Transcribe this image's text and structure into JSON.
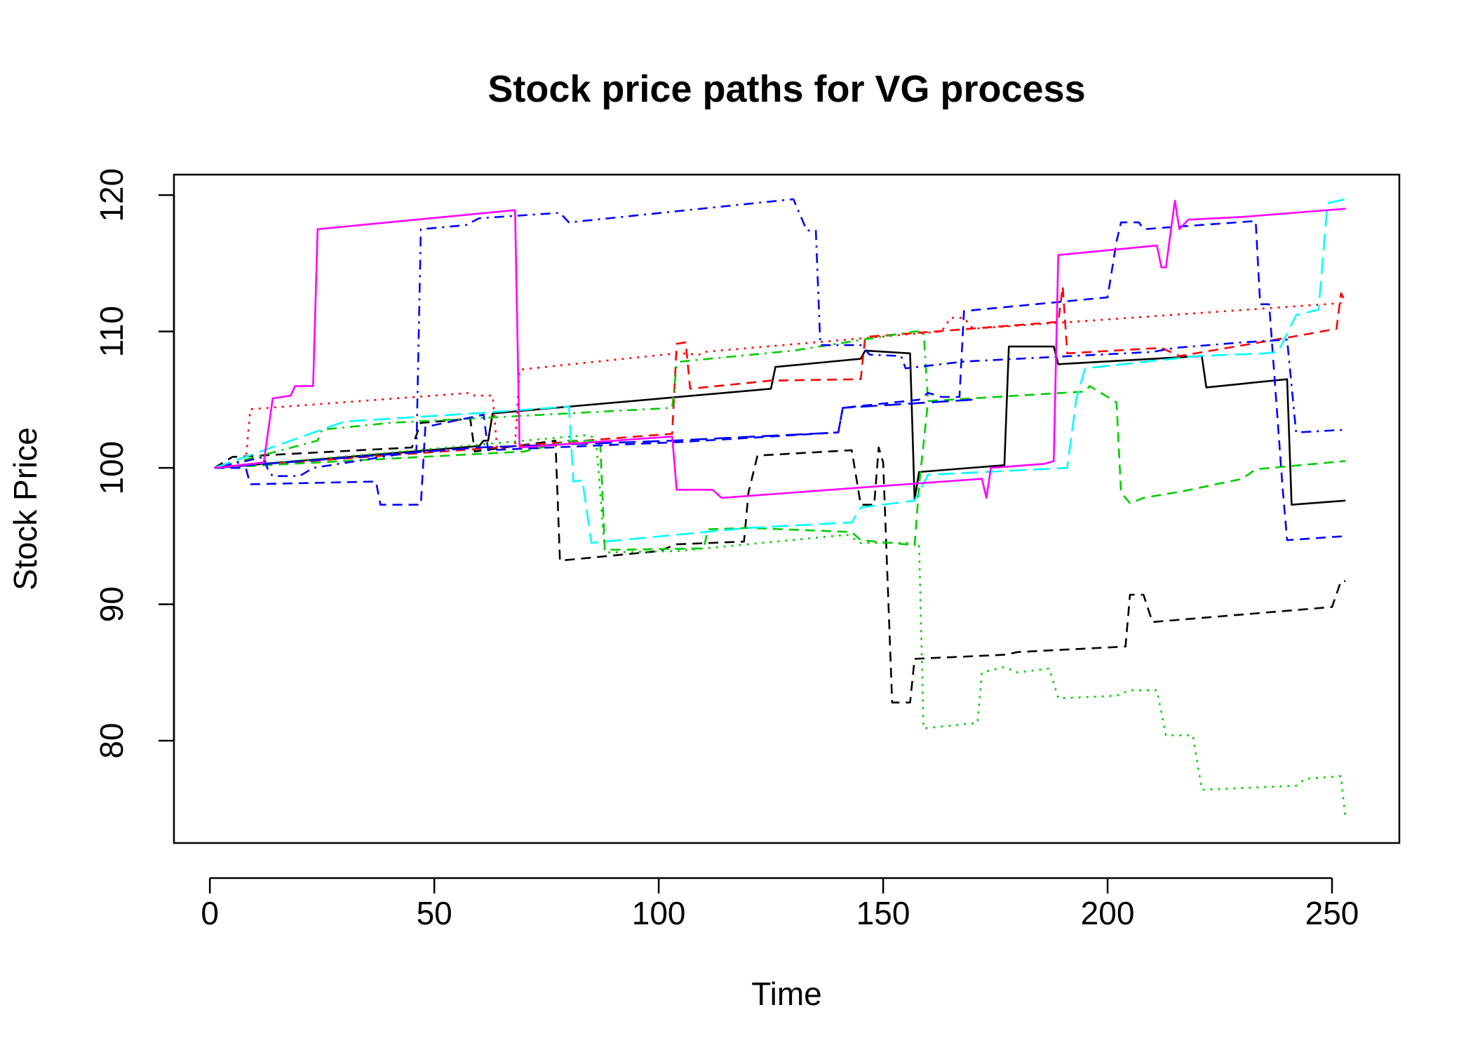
{
  "chart_data": {
    "type": "line",
    "title": "Stock price paths for VG process",
    "xlabel": "Time",
    "ylabel": "Stock Price",
    "xlim": [
      -8,
      265
    ],
    "ylim": [
      72.5,
      121.5
    ],
    "x_ticks": [
      0,
      50,
      100,
      150,
      200,
      250
    ],
    "x_tick_labels": [
      "0",
      "50",
      "100",
      "150",
      "200",
      "250"
    ],
    "y_ticks": [
      80,
      90,
      100,
      110,
      120
    ],
    "y_tick_labels": [
      "80",
      "90",
      "100",
      "110",
      "120"
    ],
    "grid": false,
    "legend": "none",
    "series": [
      {
        "color": "#000000",
        "dash": "solid",
        "points": [
          [
            1,
            100
          ],
          [
            60,
            101.6
          ],
          [
            61,
            102
          ],
          [
            62,
            102
          ],
          [
            63,
            104
          ],
          [
            125,
            105.8
          ],
          [
            126,
            107.4
          ],
          [
            145,
            108
          ],
          [
            146,
            108.6
          ],
          [
            156,
            108.4
          ],
          [
            157,
            97.7
          ],
          [
            158,
            99.7
          ],
          [
            177,
            100.2
          ],
          [
            178,
            108.9
          ],
          [
            188,
            108.9
          ],
          [
            189,
            107.6
          ],
          [
            221,
            108.2
          ],
          [
            222,
            105.9
          ],
          [
            240,
            106.5
          ],
          [
            241,
            97.3
          ],
          [
            253,
            97.6
          ]
        ]
      },
      {
        "color": "#000000",
        "dash": "dashed",
        "points": [
          [
            1,
            100
          ],
          [
            5,
            100.8
          ],
          [
            45,
            101.5
          ],
          [
            47,
            103.3
          ],
          [
            58,
            103.6
          ],
          [
            59,
            101.2
          ],
          [
            77,
            102
          ],
          [
            78,
            93.2
          ],
          [
            100,
            93.9
          ],
          [
            104,
            94.4
          ],
          [
            119,
            94.6
          ],
          [
            120,
            98.2
          ],
          [
            122,
            100.9
          ],
          [
            143,
            101.3
          ],
          [
            145,
            97.3
          ],
          [
            148,
            97.3
          ],
          [
            149,
            101.5
          ],
          [
            150,
            100.4
          ],
          [
            152,
            82.8
          ],
          [
            156,
            82.8
          ],
          [
            157,
            86
          ],
          [
            177,
            86.3
          ],
          [
            180,
            86.5
          ],
          [
            204,
            86.9
          ],
          [
            205,
            90.7
          ],
          [
            208,
            90.7
          ],
          [
            210,
            88.7
          ],
          [
            250,
            89.8
          ],
          [
            252,
            91.7
          ],
          [
            253,
            91.7
          ]
        ]
      },
      {
        "color": "#FF0000",
        "dash": "dotted",
        "points": [
          [
            1,
            100
          ],
          [
            8,
            100.5
          ],
          [
            9,
            104.3
          ],
          [
            58,
            105.5
          ],
          [
            59,
            105.3
          ],
          [
            63,
            105.3
          ],
          [
            64,
            101.4
          ],
          [
            68,
            101.6
          ],
          [
            69,
            107.2
          ],
          [
            104,
            108.4
          ],
          [
            105,
            108.4
          ],
          [
            109,
            108.3
          ],
          [
            110,
            108.5
          ],
          [
            163,
            110
          ],
          [
            165,
            111
          ],
          [
            168,
            111
          ],
          [
            170,
            110.2
          ],
          [
            253,
            112.1
          ]
        ]
      },
      {
        "color": "#FF0000",
        "dash": "dashed",
        "points": [
          [
            1,
            100
          ],
          [
            60,
            101.4
          ],
          [
            103,
            102.5
          ],
          [
            104,
            109.1
          ],
          [
            106,
            109.2
          ],
          [
            107,
            105.8
          ],
          [
            125,
            106.4
          ],
          [
            145,
            106.5
          ],
          [
            146,
            109.6
          ],
          [
            189,
            110.7
          ],
          [
            190,
            113.3
          ],
          [
            191,
            108.4
          ],
          [
            212,
            108.8
          ],
          [
            216,
            108.2
          ],
          [
            241,
            109.6
          ],
          [
            251,
            110.2
          ],
          [
            252,
            112.8
          ],
          [
            253,
            112.2
          ]
        ]
      },
      {
        "color": "#00CC00",
        "dash": "dashed",
        "points": [
          [
            1,
            100
          ],
          [
            70,
            101.2
          ],
          [
            78,
            101.8
          ],
          [
            79,
            102
          ],
          [
            86,
            102
          ],
          [
            87,
            101.6
          ],
          [
            88,
            94
          ],
          [
            92,
            94
          ],
          [
            110,
            94.1
          ],
          [
            111,
            95.5
          ],
          [
            120,
            95.6
          ],
          [
            143,
            95.3
          ],
          [
            145,
            94.7
          ],
          [
            155,
            94.4
          ],
          [
            157,
            94.3
          ],
          [
            158,
            98.7
          ],
          [
            160,
            104.9
          ],
          [
            195,
            105.6
          ],
          [
            196,
            106
          ],
          [
            202,
            104.8
          ],
          [
            203,
            98.2
          ],
          [
            205,
            97.4
          ],
          [
            208,
            97.8
          ],
          [
            217,
            98.3
          ],
          [
            230,
            99.2
          ],
          [
            233,
            99.9
          ],
          [
            253,
            100.5
          ]
        ]
      },
      {
        "color": "#00CC00",
        "dash": "dotted",
        "points": [
          [
            1,
            100
          ],
          [
            84,
            102.4
          ],
          [
            86,
            102.2
          ],
          [
            88,
            93.8
          ],
          [
            104,
            93.9
          ],
          [
            142,
            95.1
          ],
          [
            145,
            94.5
          ],
          [
            158,
            94.5
          ],
          [
            159,
            80.9
          ],
          [
            171,
            81.3
          ],
          [
            172,
            85
          ],
          [
            177,
            85.4
          ],
          [
            180,
            85
          ],
          [
            187,
            85.3
          ],
          [
            189,
            83.1
          ],
          [
            202,
            83.3
          ],
          [
            205,
            83.7
          ],
          [
            211,
            83.7
          ],
          [
            213,
            80.4
          ],
          [
            219,
            80.4
          ],
          [
            221,
            76.4
          ],
          [
            242,
            76.7
          ],
          [
            244,
            77.2
          ],
          [
            252,
            77.4
          ],
          [
            253,
            74.3
          ]
        ]
      },
      {
        "color": "#00CC00",
        "dash": "dotdash",
        "points": [
          [
            1,
            100
          ],
          [
            24,
            102
          ],
          [
            25,
            102.8
          ],
          [
            40,
            103.3
          ],
          [
            103,
            104.4
          ],
          [
            104,
            107.5
          ],
          [
            105,
            107.8
          ],
          [
            130,
            108.6
          ],
          [
            157,
            110
          ],
          [
            159,
            110
          ],
          [
            160,
            104.9
          ]
        ]
      },
      {
        "color": "#0000FF",
        "dash": "dashed",
        "points": [
          [
            1,
            100
          ],
          [
            8,
            100
          ],
          [
            9,
            98.8
          ],
          [
            37,
            99
          ],
          [
            38,
            97.3
          ],
          [
            47,
            97.3
          ],
          [
            48,
            103
          ],
          [
            61,
            103.9
          ],
          [
            62,
            101.3
          ],
          [
            105,
            101.9
          ],
          [
            140,
            102.6
          ],
          [
            141,
            104.4
          ],
          [
            158,
            105
          ],
          [
            160,
            105.5
          ],
          [
            163,
            105.2
          ],
          [
            167,
            105.2
          ],
          [
            168,
            111.5
          ],
          [
            200,
            112.5
          ],
          [
            202,
            116.6
          ],
          [
            203,
            118
          ],
          [
            207,
            118
          ],
          [
            208,
            117.5
          ],
          [
            233,
            118.1
          ],
          [
            234,
            112
          ],
          [
            236,
            112
          ],
          [
            239,
            98.5
          ],
          [
            240,
            94.7
          ],
          [
            253,
            95
          ]
        ]
      },
      {
        "color": "#0000FF",
        "dash": "dotdash",
        "points": [
          [
            1,
            100
          ],
          [
            12,
            100.8
          ],
          [
            13,
            99.8
          ],
          [
            14,
            99.4
          ],
          [
            20,
            99.4
          ],
          [
            23,
            100
          ],
          [
            46,
            101.2
          ],
          [
            47,
            117.5
          ],
          [
            57,
            117.8
          ],
          [
            60,
            118.3
          ],
          [
            78,
            118.7
          ],
          [
            80,
            118
          ],
          [
            130,
            119.7
          ],
          [
            133,
            117.4
          ],
          [
            135,
            117.4
          ],
          [
            136,
            109
          ],
          [
            145,
            109
          ],
          [
            147,
            108.3
          ],
          [
            154,
            108.2
          ],
          [
            155,
            107.3
          ],
          [
            168,
            107.8
          ],
          [
            210,
            108.5
          ],
          [
            215,
            108.8
          ],
          [
            230,
            109.2
          ],
          [
            240,
            109.4
          ],
          [
            242,
            102.6
          ],
          [
            253,
            102.8
          ]
        ]
      },
      {
        "color": "#0000FF",
        "dash": "longdash",
        "points": [
          [
            1,
            100
          ],
          [
            60,
            101.5
          ],
          [
            103,
            102
          ],
          [
            140,
            102.6
          ],
          [
            141,
            104.4
          ],
          [
            170,
            105
          ]
        ]
      },
      {
        "color": "#00FFFF",
        "dash": "longdash",
        "points": [
          [
            1,
            100
          ],
          [
            30,
            103.4
          ],
          [
            59,
            104
          ],
          [
            80,
            104.5
          ],
          [
            81,
            99
          ],
          [
            83,
            99.1
          ],
          [
            85,
            94.5
          ],
          [
            120,
            95.6
          ],
          [
            143,
            96
          ],
          [
            145,
            97.1
          ],
          [
            157,
            97.6
          ],
          [
            160,
            99.5
          ],
          [
            191,
            100
          ],
          [
            193,
            105
          ],
          [
            195,
            107.3
          ],
          [
            220,
            108.2
          ],
          [
            235,
            108.4
          ],
          [
            238,
            108.5
          ],
          [
            242,
            111.2
          ],
          [
            247,
            111.6
          ],
          [
            249,
            119.4
          ],
          [
            253,
            119.7
          ]
        ]
      },
      {
        "color": "#FF00FF",
        "dash": "solid",
        "points": [
          [
            1,
            100
          ],
          [
            12,
            100.4
          ],
          [
            14,
            105.1
          ],
          [
            18,
            105.3
          ],
          [
            19,
            106
          ],
          [
            23,
            106
          ],
          [
            24,
            117.5
          ],
          [
            68,
            118.9
          ],
          [
            69,
            101.5
          ],
          [
            103,
            102.3
          ],
          [
            104,
            98.4
          ],
          [
            112,
            98.4
          ],
          [
            114,
            97.8
          ],
          [
            155,
            98.8
          ],
          [
            172,
            99.2
          ],
          [
            173,
            97.8
          ],
          [
            174,
            100
          ],
          [
            186,
            100.3
          ],
          [
            188,
            100.5
          ],
          [
            189,
            115.6
          ],
          [
            211,
            116.3
          ],
          [
            212,
            114.7
          ],
          [
            213,
            114.7
          ],
          [
            215,
            119.6
          ],
          [
            216,
            117.5
          ],
          [
            218,
            118.2
          ],
          [
            230,
            118.4
          ],
          [
            253,
            119
          ]
        ]
      }
    ]
  }
}
